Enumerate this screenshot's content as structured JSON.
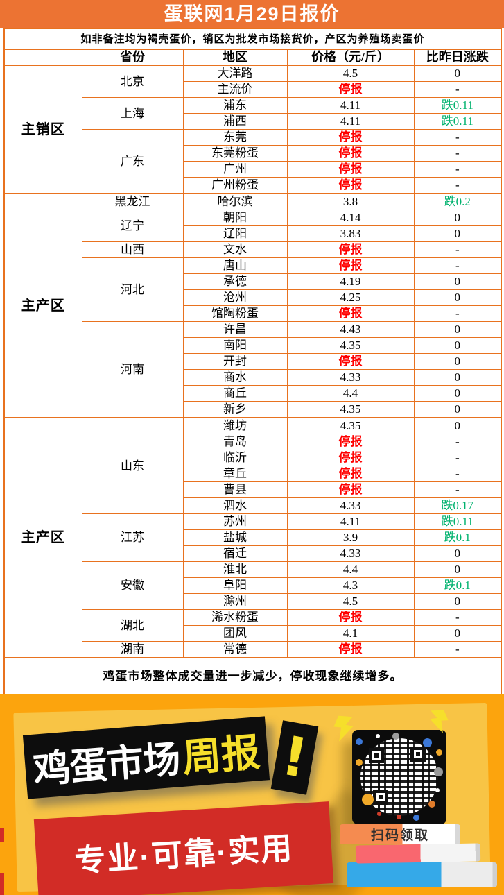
{
  "title": "蛋联网1月29日报价",
  "subtitle": "如非备注均为褐壳蛋价，销区为批发市场接货价，产区为养殖场卖蛋价",
  "table": {
    "headers": [
      "",
      "省份",
      "地区",
      "价格（元/斤）",
      "比昨日涨跌"
    ],
    "stopped_label": "停报",
    "sections": [
      {
        "label": "主销区",
        "provinces": [
          {
            "name": "北京",
            "rows": [
              [
                "大洋路",
                "4.5",
                "0"
              ],
              [
                "主流价",
                "停报",
                "-"
              ]
            ]
          },
          {
            "name": "上海",
            "rows": [
              [
                "浦东",
                "4.11",
                "跌0.11"
              ],
              [
                "浦西",
                "4.11",
                "跌0.11"
              ]
            ]
          },
          {
            "name": "广东",
            "rows": [
              [
                "东莞",
                "停报",
                "-"
              ],
              [
                "东莞粉蛋",
                "停报",
                "-"
              ],
              [
                "广州",
                "停报",
                "-"
              ],
              [
                "广州粉蛋",
                "停报",
                "-"
              ]
            ]
          }
        ]
      },
      {
        "label": "主产区",
        "provinces": [
          {
            "name": "黑龙江",
            "rows": [
              [
                "哈尔滨",
                "3.8",
                "跌0.2"
              ]
            ]
          },
          {
            "name": "辽宁",
            "rows": [
              [
                "朝阳",
                "4.14",
                "0"
              ],
              [
                "辽阳",
                "3.83",
                "0"
              ]
            ]
          },
          {
            "name": "山西",
            "rows": [
              [
                "文水",
                "停报",
                "-"
              ]
            ]
          },
          {
            "name": "河北",
            "rows": [
              [
                "唐山",
                "停报",
                "-"
              ],
              [
                "承德",
                "4.19",
                "0"
              ],
              [
                "沧州",
                "4.25",
                "0"
              ],
              [
                "馆陶粉蛋",
                "停报",
                "-"
              ]
            ]
          },
          {
            "name": "河南",
            "rows": [
              [
                "许昌",
                "4.43",
                "0"
              ],
              [
                "南阳",
                "4.35",
                "0"
              ],
              [
                "开封",
                "停报",
                "0"
              ],
              [
                "商水",
                "4.33",
                "0"
              ],
              [
                "商丘",
                "4.4",
                "0"
              ],
              [
                "新乡",
                "4.35",
                "0"
              ]
            ]
          }
        ]
      },
      {
        "label": "主产区",
        "provinces": [
          {
            "name": "山东",
            "rows": [
              [
                "潍坊",
                "4.35",
                "0"
              ],
              [
                "青岛",
                "停报",
                "-"
              ],
              [
                "临沂",
                "停报",
                "-"
              ],
              [
                "章丘",
                "停报",
                "-"
              ],
              [
                "曹县",
                "停报",
                "-"
              ],
              [
                "泗水",
                "4.33",
                "跌0.17"
              ]
            ]
          },
          {
            "name": "江苏",
            "rows": [
              [
                "苏州",
                "4.11",
                "跌0.11"
              ],
              [
                "盐城",
                "3.9",
                "跌0.1"
              ],
              [
                "宿迁",
                "4.33",
                "0"
              ]
            ]
          },
          {
            "name": "安徽",
            "rows": [
              [
                "淮北",
                "4.4",
                "0"
              ],
              [
                "阜阳",
                "4.3",
                "跌0.1"
              ],
              [
                "滁州",
                "4.5",
                "0"
              ]
            ]
          },
          {
            "name": "湖北",
            "rows": [
              [
                "浠水粉蛋",
                "停报",
                "-"
              ],
              [
                "团风",
                "4.1",
                "0"
              ]
            ]
          },
          {
            "name": "湖南",
            "rows": [
              [
                "常德",
                "停报",
                "-"
              ]
            ]
          }
        ]
      }
    ]
  },
  "note": "鸡蛋市场整体成交量进一步减少，停收现象继续增多。",
  "banner": {
    "title_main": "鸡蛋市场",
    "title_accent": "周报",
    "exclamation": "!",
    "slogan": "专业·可靠·实用",
    "qr_caption": "扫码领取"
  },
  "colors": {
    "header_orange": "#EC7333",
    "table_border": "#E8721F",
    "stopped_red": "#FF0000",
    "down_green": "#00B26E",
    "banner_orange": "#FCA40D",
    "panel_gold": "#F8C445",
    "plaque_black": "#0D0D0D",
    "plaque_red": "#D22C26",
    "accent_yellow": "#F6DF2B",
    "book_orange": "#F58B50",
    "book_pink": "#F9676F",
    "book_blue": "#35A9E8",
    "caption_dark": "#2F2F2F"
  }
}
